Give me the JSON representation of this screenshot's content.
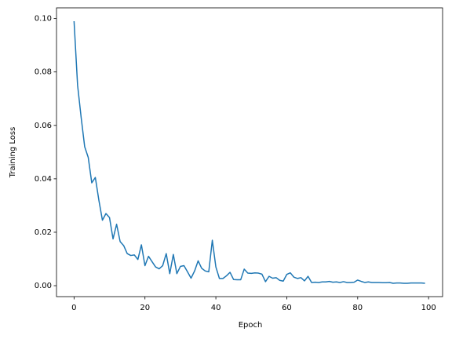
{
  "chart_data": {
    "type": "line",
    "x_label": "Epoch",
    "y_label": "Training Loss",
    "color": "#1f77b4",
    "x": [
      0,
      1,
      2,
      3,
      4,
      5,
      6,
      7,
      8,
      9,
      10,
      11,
      12,
      13,
      14,
      15,
      16,
      17,
      18,
      19,
      20,
      21,
      22,
      23,
      24,
      25,
      26,
      27,
      28,
      29,
      30,
      31,
      32,
      33,
      34,
      35,
      36,
      37,
      38,
      39,
      40,
      41,
      42,
      43,
      44,
      45,
      46,
      47,
      48,
      49,
      50,
      51,
      52,
      53,
      54,
      55,
      56,
      57,
      58,
      59,
      60,
      61,
      62,
      63,
      64,
      65,
      66,
      67,
      68,
      69,
      70,
      71,
      72,
      73,
      74,
      75,
      76,
      77,
      78,
      79,
      80,
      81,
      82,
      83,
      84,
      85,
      86,
      87,
      88,
      89,
      90,
      91,
      92,
      93,
      94,
      95,
      96,
      97,
      98,
      99
    ],
    "values": [
      0.099,
      0.075,
      0.063,
      0.052,
      0.048,
      0.0385,
      0.0405,
      0.032,
      0.0245,
      0.027,
      0.0255,
      0.0175,
      0.023,
      0.0165,
      0.015,
      0.012,
      0.0113,
      0.0115,
      0.0098,
      0.0153,
      0.0075,
      0.011,
      0.009,
      0.007,
      0.0063,
      0.0075,
      0.012,
      0.0045,
      0.0117,
      0.0045,
      0.0072,
      0.0075,
      0.0052,
      0.0028,
      0.0055,
      0.0093,
      0.0065,
      0.0055,
      0.0052,
      0.017,
      0.007,
      0.0027,
      0.0027,
      0.0037,
      0.005,
      0.0023,
      0.0022,
      0.0022,
      0.0062,
      0.0047,
      0.0046,
      0.0048,
      0.0047,
      0.0043,
      0.0015,
      0.0035,
      0.0028,
      0.003,
      0.002,
      0.0017,
      0.0042,
      0.0048,
      0.0032,
      0.0027,
      0.003,
      0.0018,
      0.0035,
      0.0012,
      0.0013,
      0.0012,
      0.0014,
      0.0014,
      0.0016,
      0.0013,
      0.0014,
      0.0012,
      0.0015,
      0.0012,
      0.0012,
      0.0013,
      0.0021,
      0.0016,
      0.0012,
      0.0014,
      0.0012,
      0.0012,
      0.0012,
      0.0011,
      0.0011,
      0.0012,
      0.0009,
      0.001,
      0.001,
      0.0009,
      0.0009,
      0.001,
      0.001,
      0.001,
      0.001,
      0.0009
    ],
    "xlim": [
      -4.95,
      103.95
    ],
    "ylim": [
      -0.0041,
      0.104
    ],
    "xticks": [
      0,
      20,
      40,
      60,
      80,
      100
    ],
    "yticks": [
      {
        "value": 0,
        "label": "0.00"
      },
      {
        "value": 0.02,
        "label": "0.02"
      },
      {
        "value": 0.04,
        "label": "0.04"
      },
      {
        "value": 0.06,
        "label": "0.06"
      },
      {
        "value": 0.08,
        "label": "0.08"
      },
      {
        "value": 0.1,
        "label": "0.10"
      }
    ],
    "grid": false
  }
}
